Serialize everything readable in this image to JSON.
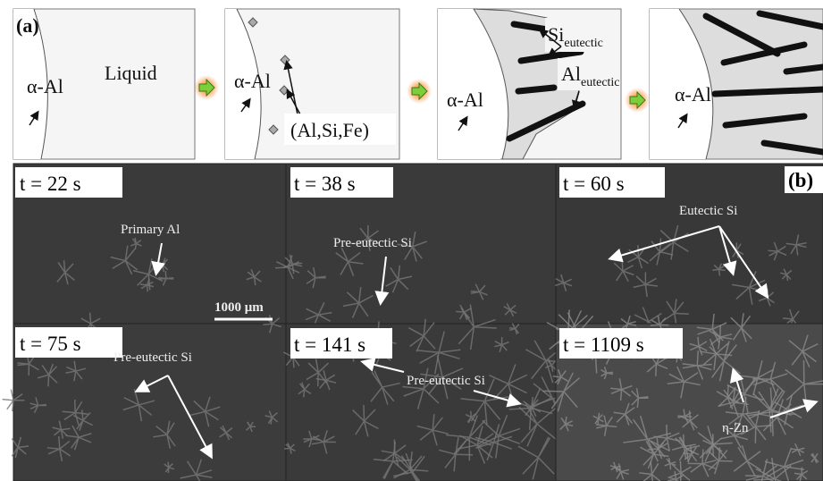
{
  "panel_a": {
    "label": "(a)",
    "stages": [
      {
        "alpha": "α-Al",
        "note": "Liquid"
      },
      {
        "alpha": "α-Al",
        "note": "(Al,Si,Fe)"
      },
      {
        "alpha": "α-Al",
        "si": {
          "main": "Si",
          "sub": "eutectic"
        },
        "al": {
          "main": "Al",
          "sub": "eutectic"
        }
      },
      {
        "alpha": "α-Al"
      }
    ]
  },
  "panel_b": {
    "label": "(b)",
    "scale_bar": "1000 μm",
    "frames": [
      {
        "time": "t = 22 s",
        "annotation": "Primary Al"
      },
      {
        "time": "t = 38 s",
        "annotation": "Pre-eutectic Si"
      },
      {
        "time": "t = 60 s",
        "annotation": "Eutectic Si"
      },
      {
        "time": "t = 75 s",
        "annotation": "Pre-eutectic Si"
      },
      {
        "time": "t = 141 s",
        "annotation": "Pre-eutectic Si"
      },
      {
        "time": "t = 1109 s",
        "annotation": "η-Zn"
      }
    ]
  }
}
